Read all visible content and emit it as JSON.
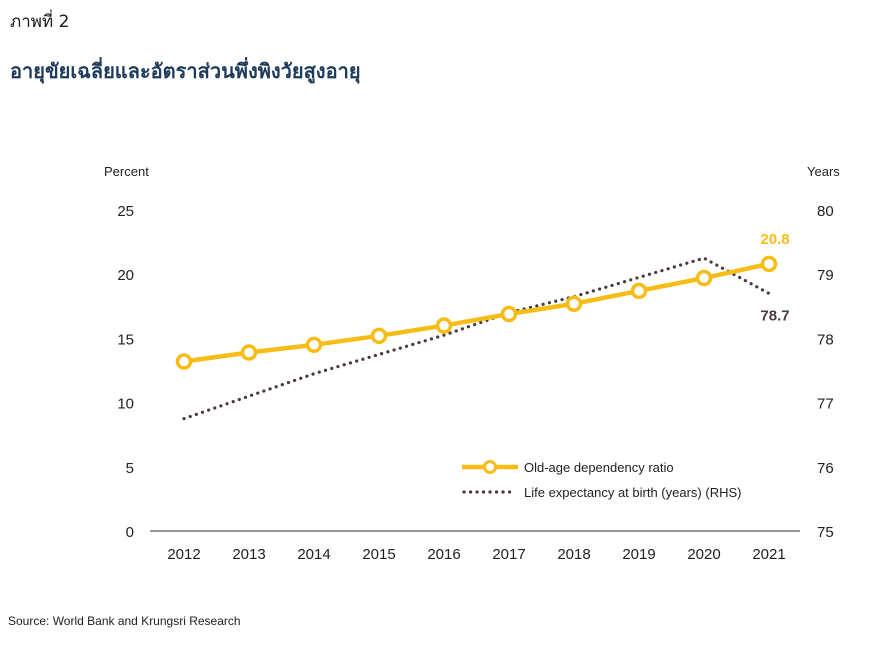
{
  "header": {
    "figure_label": "ภาพที่ 2",
    "title": "อายุขัยเฉลี่ยและอัตราส่วนพึ่งพิงวัยสูงอายุ"
  },
  "source": "Source: World Bank and Krungsri Research",
  "colors": {
    "ratio": "#f7bd16",
    "life": "#4a3a3a",
    "axis": "#333333",
    "text": "#222222"
  },
  "chart_data": {
    "type": "line",
    "x": [
      "2012",
      "2013",
      "2014",
      "2015",
      "2016",
      "2017",
      "2018",
      "2019",
      "2020",
      "2021"
    ],
    "left_axis": {
      "label": "Percent",
      "ylim": [
        0,
        25
      ],
      "ticks": [
        "0",
        "5",
        "10",
        "15",
        "20",
        "25"
      ]
    },
    "right_axis": {
      "label": "Years",
      "ylim": [
        75,
        80
      ],
      "ticks": [
        "75",
        "76",
        "77",
        "78",
        "79",
        "80"
      ]
    },
    "series": [
      {
        "name": "Old-age dependency ratio",
        "axis": "left",
        "style": "solid-marker",
        "values": [
          13.2,
          13.9,
          14.5,
          15.2,
          16.0,
          16.9,
          17.7,
          18.7,
          19.7,
          20.8
        ],
        "end_label": "20.8"
      },
      {
        "name": "Life expectancy at birth (years) (RHS)",
        "axis": "right",
        "style": "dotted",
        "values": [
          76.75,
          77.1,
          77.45,
          77.75,
          78.05,
          78.4,
          78.65,
          78.95,
          79.25,
          78.7
        ],
        "end_label": "78.7"
      }
    ],
    "grid": false,
    "legend_position": "bottom-right"
  }
}
